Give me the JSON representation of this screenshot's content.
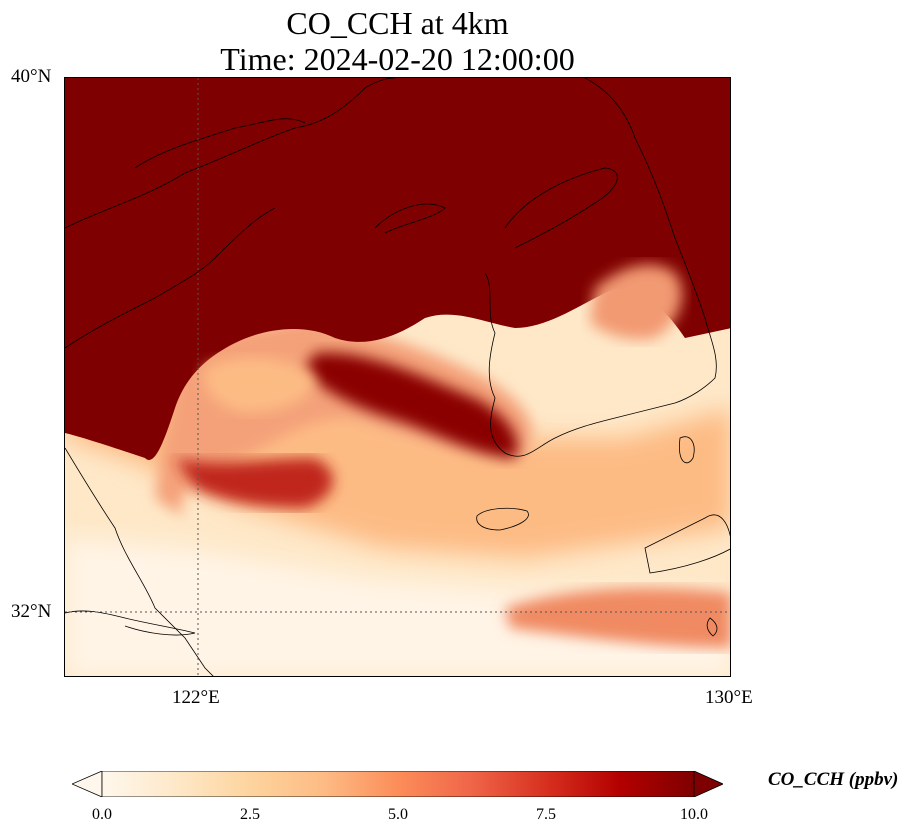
{
  "title": {
    "line1": "CO_CCH at 4km",
    "line2": "Time: 2024-02-20 12:00:00"
  },
  "map": {
    "extent": {
      "lon_min": 119.6,
      "lon_max": 130.0,
      "lat_min": 31.0,
      "lat_max": 40.0
    },
    "gridlines": {
      "lon": [
        122
      ],
      "lat": [
        32
      ],
      "style": "dotted"
    },
    "lon_labels": [
      "122°E",
      "130°E"
    ],
    "lat_labels": [
      "40°N",
      "32°N"
    ],
    "field_description_colors": {
      "saturated": "#7f0000",
      "high": "#b30000",
      "mid": "#ef6548",
      "low": "#fdd49e",
      "background": "#fff7ec"
    }
  },
  "colorbar": {
    "label": "CO_CCH (ppbv)",
    "ticks": [
      "0.0",
      "2.5",
      "5.0",
      "7.5",
      "10.0"
    ],
    "range": [
      0.0,
      10.0
    ],
    "extend": "both",
    "colormap": "OrRd",
    "stops": [
      "#fff7ec",
      "#fee8c8",
      "#fdd49e",
      "#fdbb84",
      "#fc8d59",
      "#ef6548",
      "#d7301f",
      "#b30000",
      "#7f0000"
    ]
  }
}
